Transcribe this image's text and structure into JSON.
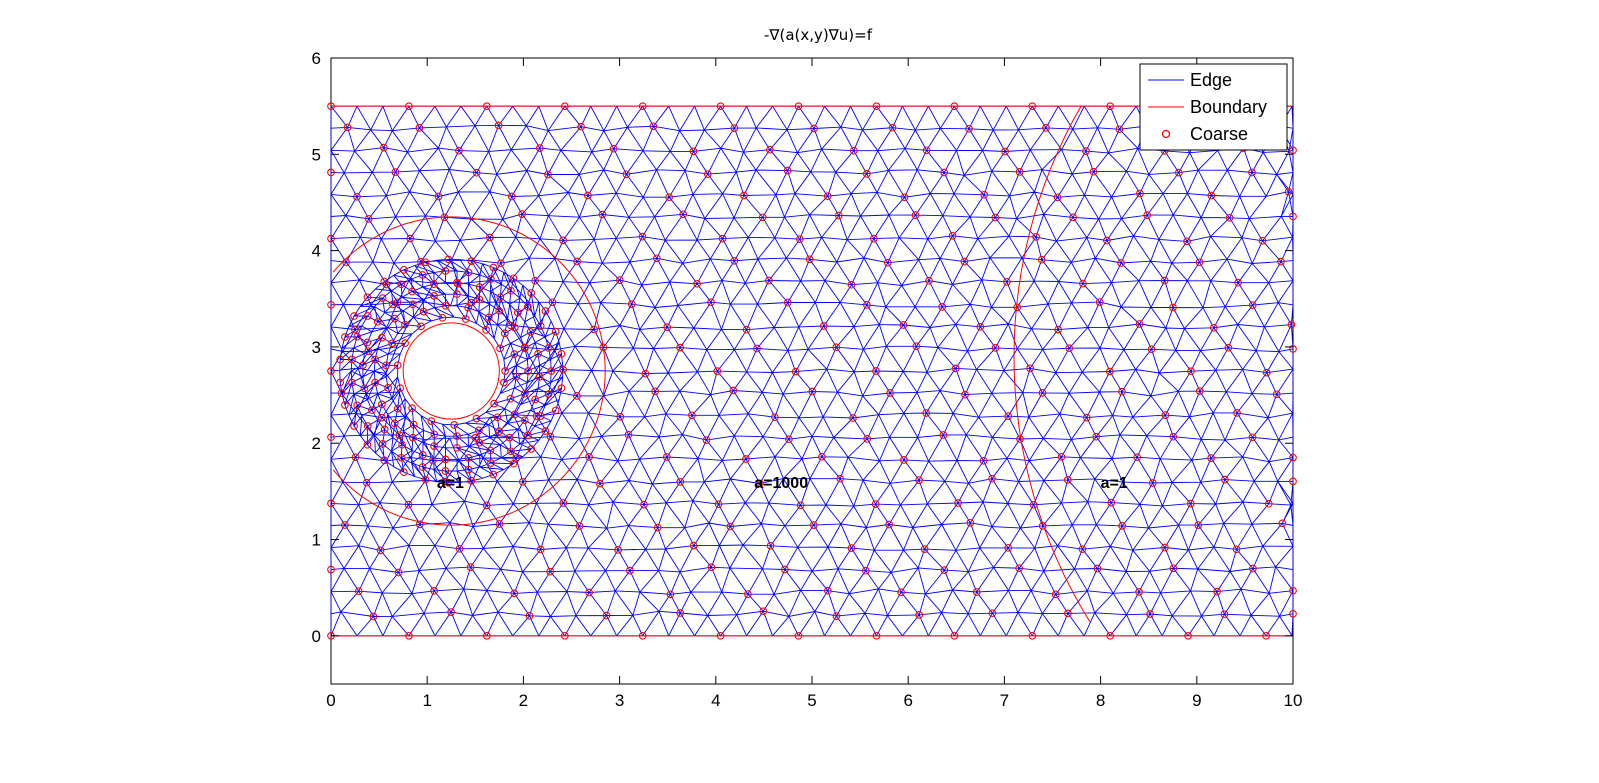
{
  "chart_data": {
    "type": "scatter",
    "title": "-∇(a(x,y)∇u)=f",
    "xlabel": "",
    "ylabel": "",
    "xlim": [
      0,
      10
    ],
    "ylim": [
      -0.5,
      6
    ],
    "xticks": [
      "0",
      "1",
      "2",
      "3",
      "4",
      "5",
      "6",
      "7",
      "8",
      "9",
      "10"
    ],
    "yticks": [
      "0",
      "1",
      "2",
      "3",
      "4",
      "5",
      "6"
    ],
    "grid": false,
    "legend_position": "top-right",
    "legend": [
      {
        "name": "Edge",
        "marker": "line",
        "color": "#0000ff"
      },
      {
        "name": "Boundary",
        "marker": "line",
        "color": "#ff0000"
      },
      {
        "name": "Coarse",
        "marker": "circle",
        "color": "#ff0000"
      }
    ],
    "annotations": [
      {
        "text": "a=1",
        "x": 1.1,
        "y": 1.6
      },
      {
        "text": "a=1000",
        "x": 4.4,
        "y": 1.6
      },
      {
        "text": "a=1",
        "x": 8.0,
        "y": 1.6
      }
    ],
    "domain": {
      "x": [
        0,
        10
      ],
      "y": [
        0,
        5.5
      ]
    },
    "hole": {
      "center": [
        1.25,
        2.75
      ],
      "radius": 0.5
    },
    "subdomain_boundaries": [
      {
        "type": "circle",
        "center": [
          1.25,
          2.75
        ],
        "radius": 1.6
      },
      {
        "type": "circle",
        "center": [
          12.3,
          2.9
        ],
        "radius": 5.2
      }
    ],
    "colors": {
      "edge": "#0000ff",
      "boundary": "#ff0000",
      "coarse": "#ff0000",
      "axes": "#000000"
    }
  }
}
